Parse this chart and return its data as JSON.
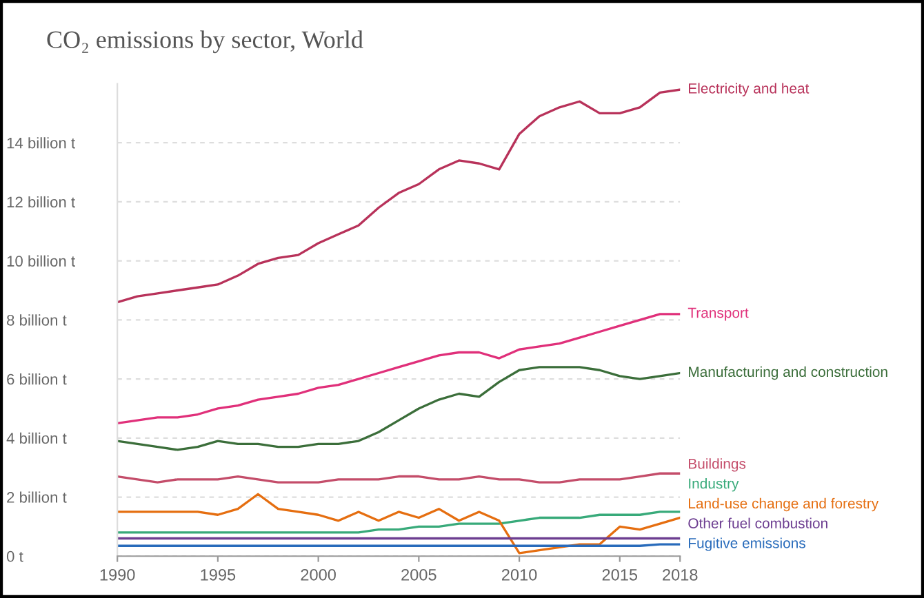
{
  "chart_data": {
    "type": "line",
    "title": "CO₂ emissions by sector, World",
    "x": [
      1990,
      1991,
      1992,
      1993,
      1994,
      1995,
      1996,
      1997,
      1998,
      1999,
      2000,
      2001,
      2002,
      2003,
      2004,
      2005,
      2006,
      2007,
      2008,
      2009,
      2010,
      2011,
      2012,
      2013,
      2014,
      2015,
      2016,
      2017,
      2018
    ],
    "series": [
      {
        "name": "Electricity and heat",
        "color": "#b8325a",
        "values": [
          8.6,
          8.8,
          8.9,
          9.0,
          9.1,
          9.2,
          9.5,
          9.9,
          10.1,
          10.2,
          10.6,
          10.9,
          11.2,
          11.8,
          12.3,
          12.6,
          13.1,
          13.4,
          13.3,
          13.1,
          14.3,
          14.9,
          15.2,
          15.4,
          15.0,
          15.0,
          15.2,
          15.7,
          15.8
        ]
      },
      {
        "name": "Transport",
        "color": "#e0307a",
        "values": [
          4.5,
          4.6,
          4.7,
          4.7,
          4.8,
          5.0,
          5.1,
          5.3,
          5.4,
          5.5,
          5.7,
          5.8,
          6.0,
          6.2,
          6.4,
          6.6,
          6.8,
          6.9,
          6.9,
          6.7,
          7.0,
          7.1,
          7.2,
          7.4,
          7.6,
          7.8,
          8.0,
          8.2,
          8.2
        ]
      },
      {
        "name": "Manufacturing and construction",
        "color": "#3b6e3a",
        "values": [
          3.9,
          3.8,
          3.7,
          3.6,
          3.7,
          3.9,
          3.8,
          3.8,
          3.7,
          3.7,
          3.8,
          3.8,
          3.9,
          4.2,
          4.6,
          5.0,
          5.3,
          5.5,
          5.4,
          5.9,
          6.3,
          6.4,
          6.4,
          6.4,
          6.3,
          6.1,
          6.0,
          6.1,
          6.2
        ]
      },
      {
        "name": "Buildings",
        "color": "#c44d6a",
        "values": [
          2.7,
          2.6,
          2.5,
          2.6,
          2.6,
          2.6,
          2.7,
          2.6,
          2.5,
          2.5,
          2.5,
          2.6,
          2.6,
          2.6,
          2.7,
          2.7,
          2.6,
          2.6,
          2.7,
          2.6,
          2.6,
          2.5,
          2.5,
          2.6,
          2.6,
          2.6,
          2.7,
          2.8,
          2.8
        ]
      },
      {
        "name": "Industry",
        "color": "#38aa7a",
        "values": [
          0.8,
          0.8,
          0.8,
          0.8,
          0.8,
          0.8,
          0.8,
          0.8,
          0.8,
          0.8,
          0.8,
          0.8,
          0.8,
          0.9,
          0.9,
          1.0,
          1.0,
          1.1,
          1.1,
          1.1,
          1.2,
          1.3,
          1.3,
          1.3,
          1.4,
          1.4,
          1.4,
          1.5,
          1.5
        ]
      },
      {
        "name": "Land-use change and forestry",
        "color": "#e56e10",
        "values": [
          1.5,
          1.5,
          1.5,
          1.5,
          1.5,
          1.4,
          1.6,
          2.1,
          1.6,
          1.5,
          1.4,
          1.2,
          1.5,
          1.2,
          1.5,
          1.3,
          1.6,
          1.2,
          1.5,
          1.2,
          0.1,
          0.2,
          0.3,
          0.4,
          0.4,
          1.0,
          0.9,
          1.1,
          1.3
        ]
      },
      {
        "name": "Other fuel combustion",
        "color": "#6d3e91",
        "values": [
          0.6,
          0.6,
          0.6,
          0.6,
          0.6,
          0.6,
          0.6,
          0.6,
          0.6,
          0.6,
          0.6,
          0.6,
          0.6,
          0.6,
          0.6,
          0.6,
          0.6,
          0.6,
          0.6,
          0.6,
          0.6,
          0.6,
          0.6,
          0.6,
          0.6,
          0.6,
          0.6,
          0.6,
          0.6
        ]
      },
      {
        "name": "Fugitive emissions",
        "color": "#286bbb",
        "values": [
          0.35,
          0.35,
          0.35,
          0.35,
          0.35,
          0.35,
          0.35,
          0.35,
          0.35,
          0.35,
          0.35,
          0.35,
          0.35,
          0.35,
          0.35,
          0.35,
          0.35,
          0.35,
          0.35,
          0.35,
          0.35,
          0.35,
          0.35,
          0.35,
          0.35,
          0.35,
          0.35,
          0.4,
          0.4
        ]
      }
    ],
    "xlim": [
      1990,
      2018
    ],
    "ylim": [
      0,
      16
    ],
    "xticks": [
      1990,
      1995,
      2000,
      2005,
      2010,
      2015,
      2018
    ],
    "yticks": [
      {
        "value": 0,
        "label": "0 t"
      },
      {
        "value": 2,
        "label": "2 billion t"
      },
      {
        "value": 4,
        "label": "4 billion t"
      },
      {
        "value": 6,
        "label": "6 billion t"
      },
      {
        "value": 8,
        "label": "8 billion t"
      },
      {
        "value": 10,
        "label": "10 billion t"
      },
      {
        "value": 12,
        "label": "12 billion t"
      },
      {
        "value": 14,
        "label": "14 billion t"
      }
    ],
    "grid": "y",
    "legend": false,
    "marker": "none",
    "line_style": "solid"
  }
}
